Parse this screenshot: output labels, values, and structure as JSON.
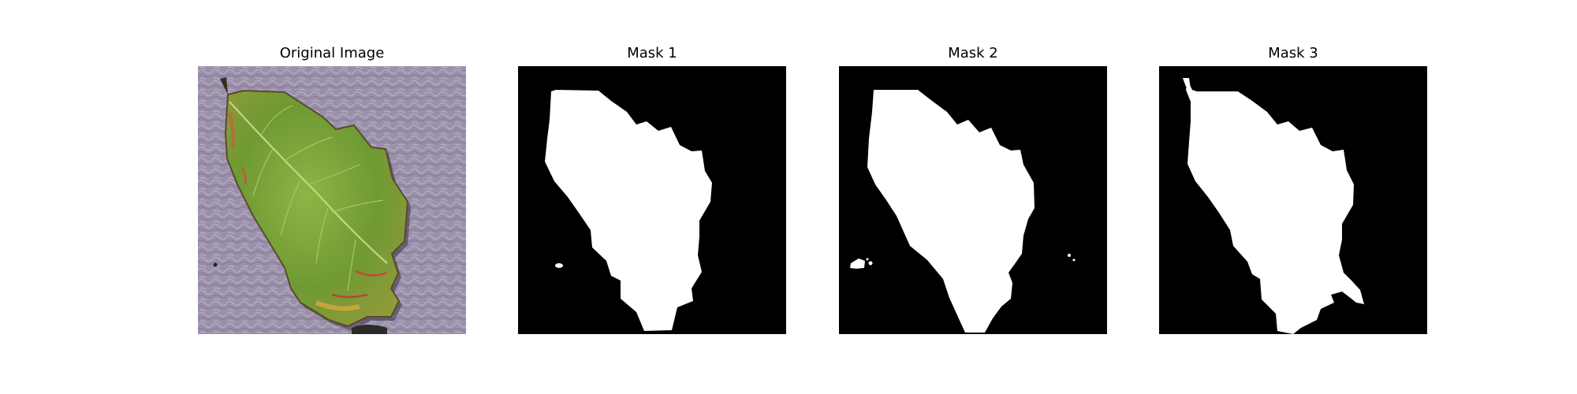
{
  "figure": {
    "panels": [
      {
        "title": "Original Image"
      },
      {
        "title": "Mask 1"
      },
      {
        "title": "Mask 2"
      },
      {
        "title": "Mask 3"
      }
    ]
  },
  "colors": {
    "background": "#ffffff",
    "mask_foreground": "#ffffff",
    "mask_background": "#000000",
    "leaf_green": "#7da23a",
    "surface_lavender": "#9a8fa8"
  }
}
